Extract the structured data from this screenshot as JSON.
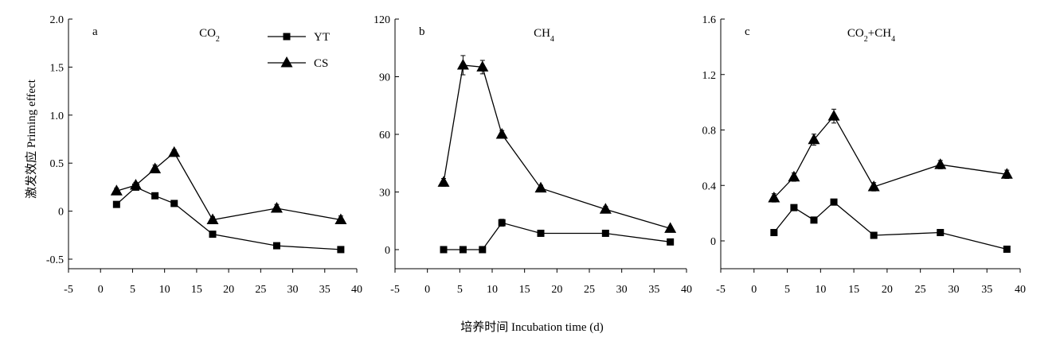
{
  "figure": {
    "ylabel": "激发效应 Priming effect",
    "xlabel": "培养时间 Incubation time (d)"
  },
  "legend": {
    "entries": [
      {
        "name": "YT",
        "marker": "square"
      },
      {
        "name": "CS",
        "marker": "triangle"
      }
    ],
    "placement": "top-right of panel a"
  },
  "colors": {
    "line": "#000000",
    "marker": "#000000"
  },
  "chart_data": [
    {
      "type": "line",
      "panel_letter": "a",
      "title": "CO2",
      "title_main": "CO",
      "title_sub": "2",
      "xlim": [
        -5,
        40
      ],
      "xticks": [
        "-5",
        "0",
        "5",
        "10",
        "15",
        "20",
        "25",
        "30",
        "35",
        "40"
      ],
      "ylim": [
        -0.5,
        2.0
      ],
      "yticks": [
        "-0.5",
        "0",
        "0.5",
        "1.0",
        "1.5",
        "2.0"
      ],
      "grid": false,
      "series": [
        {
          "name": "YT",
          "marker": "square",
          "x": [
            2.5,
            5.5,
            8.5,
            11.5,
            17.5,
            27.5,
            37.5
          ],
          "y": [
            0.07,
            0.25,
            0.16,
            0.08,
            -0.24,
            -0.36,
            -0.4
          ],
          "err": [
            0.03,
            0.03,
            0.03,
            0.03,
            0.03,
            0.02,
            0.03
          ]
        },
        {
          "name": "CS",
          "marker": "triangle",
          "x": [
            2.5,
            5.5,
            8.5,
            11.5,
            17.5,
            27.5,
            37.5
          ],
          "y": [
            0.21,
            0.27,
            0.44,
            0.61,
            -0.09,
            0.03,
            -0.09
          ],
          "err": [
            0.03,
            0.03,
            0.04,
            0.03,
            0.03,
            0.04,
            0.04
          ]
        }
      ]
    },
    {
      "type": "line",
      "panel_letter": "b",
      "title": "CH4",
      "title_main": "CH",
      "title_sub": "4",
      "xlim": [
        -5,
        40
      ],
      "xticks": [
        "-5",
        "0",
        "5",
        "10",
        "15",
        "20",
        "25",
        "30",
        "35",
        "40"
      ],
      "ylim": [
        -5,
        120
      ],
      "yticks": [
        "0",
        "30",
        "60",
        "90",
        "120"
      ],
      "grid": false,
      "series": [
        {
          "name": "YT",
          "marker": "square",
          "x": [
            2.5,
            5.5,
            8.5,
            11.5,
            17.5,
            27.5,
            37.5
          ],
          "y": [
            0,
            0,
            0,
            14,
            8.5,
            8.5,
            4
          ],
          "err": [
            0.8,
            0.8,
            0.8,
            1.8,
            1.2,
            1.2,
            1.5
          ]
        },
        {
          "name": "CS",
          "marker": "triangle",
          "x": [
            2.5,
            5.5,
            8.5,
            11.5,
            17.5,
            27.5,
            37.5
          ],
          "y": [
            35,
            96,
            95,
            60,
            32,
            21,
            11
          ],
          "err": [
            2.0,
            5.0,
            3.5,
            2.0,
            1.5,
            1.5,
            1.0
          ]
        }
      ]
    },
    {
      "type": "line",
      "panel_letter": "c",
      "title": "CO2+CH4",
      "title_main": "CO",
      "title_sub": "2",
      "title_main2": "+CH",
      "title_sub2": "4",
      "xlim": [
        -5,
        40
      ],
      "xticks": [
        "-5",
        "0",
        "5",
        "10",
        "15",
        "20",
        "25",
        "30",
        "35",
        "40"
      ],
      "ylim": [
        -0.2,
        1.6
      ],
      "yticks": [
        "0",
        "0.4",
        "0.8",
        "1.2",
        "1.6"
      ],
      "grid": false,
      "series": [
        {
          "name": "YT",
          "marker": "square",
          "x": [
            3,
            6,
            9,
            12,
            18,
            28,
            38
          ],
          "y": [
            0.06,
            0.24,
            0.15,
            0.28,
            0.04,
            0.06,
            -0.06
          ],
          "err": [
            0.02,
            0.02,
            0.02,
            0.02,
            0.02,
            0.02,
            0.02
          ]
        },
        {
          "name": "CS",
          "marker": "triangle",
          "x": [
            3,
            6,
            9,
            12,
            18,
            28,
            38
          ],
          "y": [
            0.31,
            0.46,
            0.73,
            0.9,
            0.39,
            0.55,
            0.48
          ],
          "err": [
            0.03,
            0.03,
            0.04,
            0.05,
            0.03,
            0.03,
            0.03
          ]
        }
      ]
    }
  ]
}
